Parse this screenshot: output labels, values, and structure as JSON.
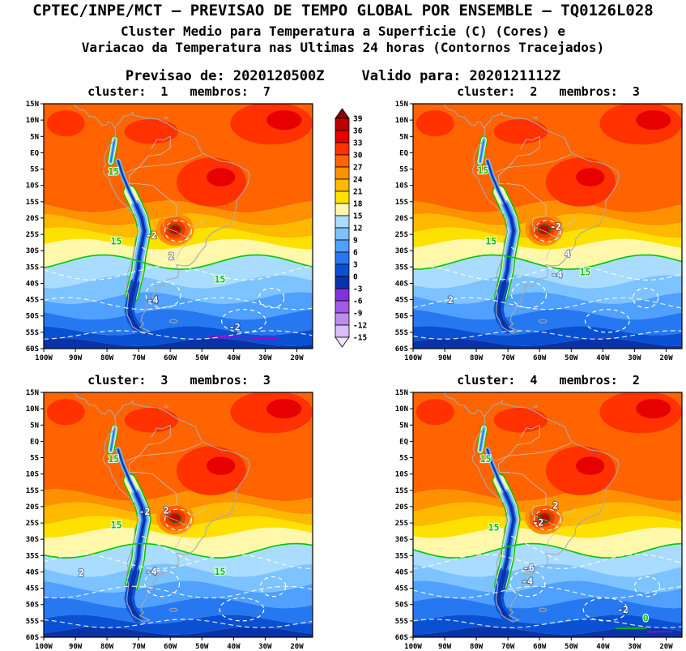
{
  "header": {
    "title": "CPTEC/INPE/MCT — PREVISAO DE TEMPO GLOBAL POR ENSEMBLE — TQ0126L028",
    "subtitle1": "Cluster Medio para Temperatura a Superficie (C) (Cores) e",
    "subtitle2": "Variacao da Temperatura nas Ultimas 24 horas (Contornos Tracejados)",
    "forecast": {
      "init": "Previsao de: 2020120500Z",
      "valid": "Valido para: 2020121112Z"
    }
  },
  "axes": {
    "lat_ticks": [
      "15N",
      "10N",
      "5N",
      "EQ",
      "5S",
      "10S",
      "15S",
      "20S",
      "25S",
      "30S",
      "35S",
      "40S",
      "45S",
      "50S",
      "55S",
      "60S"
    ],
    "lon_ticks": [
      "100W",
      "90W",
      "80W",
      "70W",
      "60W",
      "50W",
      "40W",
      "30W",
      "20W"
    ]
  },
  "chart_data": {
    "type": "filled-contour-map",
    "model": "TQ0126L028",
    "source": "CPTEC/INPE/MCT",
    "init_time": "2020120500Z",
    "valid_time": "2020121112Z",
    "fill_variable": "Cluster Medio para Temperatura a Superficie (C) (Cores)",
    "contour_variable": "Variacao da Temperatura nas Ultimas 24 horas (Contornos Tracejados)",
    "region": {
      "lon_range": [
        "100W",
        "15W"
      ],
      "lat_range": [
        "60S",
        "15N"
      ]
    },
    "colorbar": {
      "levels": [
        39,
        36,
        33,
        30,
        27,
        24,
        21,
        18,
        15,
        12,
        9,
        6,
        3,
        0,
        -3,
        -6,
        -9,
        -12,
        -15
      ],
      "colors": [
        "#8c0000",
        "#c00000",
        "#e60000",
        "#ff3200",
        "#ff6400",
        "#ff9100",
        "#ffb900",
        "#ffe100",
        "#fff7aa",
        "#aadcff",
        "#7cc3ff",
        "#4fa0ff",
        "#2678f0",
        "#0a50d2",
        "#0a32aa",
        "#8232dc",
        "#a05ae6",
        "#be8cf0",
        "#d9bef7",
        "#efe4fc"
      ]
    },
    "isotherm_approx_lats": {
      "27": -16.5,
      "24": -20.5,
      "21": -24.5,
      "18": -28,
      "15": -33.5,
      "12": -39.5,
      "9": -44.5,
      "6": -49.5,
      "3": -54.5,
      "0": -58
    },
    "contour_green_hex": "#00c800",
    "panels": [
      {
        "cluster": 1,
        "membros": 7,
        "title": "cluster:  1   membros:  7",
        "contour_labels": [
          {
            "text": "15",
            "color": "green",
            "x": 0.26,
            "y": 0.29
          },
          {
            "text": "15",
            "color": "green",
            "x": 0.27,
            "y": 0.575
          },
          {
            "text": "-2",
            "color": "white",
            "x": 0.4,
            "y": 0.55
          },
          {
            "text": "2",
            "color": "white",
            "x": 0.475,
            "y": 0.635
          },
          {
            "text": "15",
            "color": "green",
            "x": 0.655,
            "y": 0.73
          },
          {
            "text": "-4",
            "color": "white",
            "x": 0.405,
            "y": 0.815
          },
          {
            "text": "-2",
            "color": "white",
            "x": 0.71,
            "y": 0.925
          }
        ]
      },
      {
        "cluster": 2,
        "membros": 3,
        "title": "cluster:  2   membros:  3",
        "contour_labels": [
          {
            "text": "15",
            "color": "green",
            "x": 0.26,
            "y": 0.285
          },
          {
            "text": "15",
            "color": "green",
            "x": 0.29,
            "y": 0.575
          },
          {
            "text": "-2",
            "color": "white",
            "x": 0.53,
            "y": 0.515
          },
          {
            "text": "4",
            "color": "white",
            "x": 0.575,
            "y": 0.625
          },
          {
            "text": "-4",
            "color": "white",
            "x": 0.535,
            "y": 0.71
          },
          {
            "text": "2",
            "color": "white",
            "x": 0.14,
            "y": 0.815
          },
          {
            "text": "15",
            "color": "green",
            "x": 0.64,
            "y": 0.7
          }
        ]
      },
      {
        "cluster": 3,
        "membros": 3,
        "title": "cluster:  3   membros:  3",
        "contour_labels": [
          {
            "text": "15",
            "color": "green",
            "x": 0.26,
            "y": 0.285
          },
          {
            "text": "15",
            "color": "green",
            "x": 0.27,
            "y": 0.555
          },
          {
            "text": "-2",
            "color": "white",
            "x": 0.375,
            "y": 0.5
          },
          {
            "text": "2",
            "color": "white",
            "x": 0.455,
            "y": 0.495
          },
          {
            "text": "2",
            "color": "white",
            "x": 0.14,
            "y": 0.75
          },
          {
            "text": "-4",
            "color": "white",
            "x": 0.4,
            "y": 0.745
          },
          {
            "text": "15",
            "color": "green",
            "x": 0.655,
            "y": 0.745
          }
        ]
      },
      {
        "cluster": 4,
        "membros": 2,
        "title": "cluster:  4   membros:  2",
        "contour_labels": [
          {
            "text": "15",
            "color": "green",
            "x": 0.27,
            "y": 0.285
          },
          {
            "text": "15",
            "color": "green",
            "x": 0.3,
            "y": 0.565
          },
          {
            "text": "2",
            "color": "white",
            "x": 0.53,
            "y": 0.475
          },
          {
            "text": "-2",
            "color": "white",
            "x": 0.465,
            "y": 0.545
          },
          {
            "text": "-6",
            "color": "white",
            "x": 0.43,
            "y": 0.73
          },
          {
            "text": "-4",
            "color": "white",
            "x": 0.425,
            "y": 0.785
          },
          {
            "text": "-2",
            "color": "white",
            "x": 0.78,
            "y": 0.9
          },
          {
            "text": "0",
            "color": "green",
            "x": 0.865,
            "y": 0.935
          }
        ]
      }
    ]
  }
}
